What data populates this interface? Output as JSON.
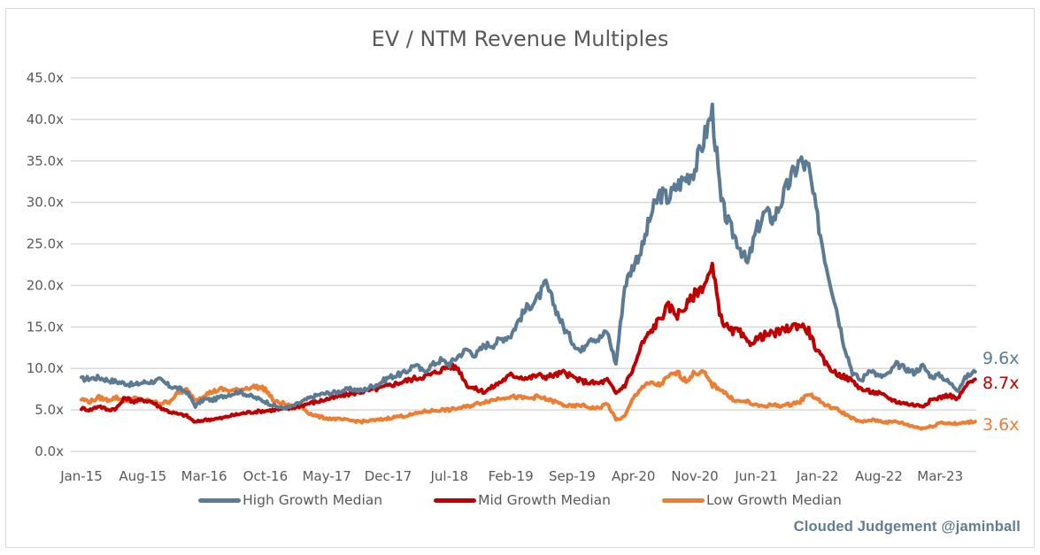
{
  "chart_data": {
    "type": "line",
    "title": "EV / NTM Revenue Multiples",
    "xlabel": "",
    "ylabel": "",
    "ylim": [
      0,
      45
    ],
    "y_ticks": [
      "0.0x",
      "5.0x",
      "10.0x",
      "15.0x",
      "20.0x",
      "25.0x",
      "30.0x",
      "35.0x",
      "40.0x",
      "45.0x"
    ],
    "y_tick_values": [
      0,
      5,
      10,
      15,
      20,
      25,
      30,
      35,
      40,
      45
    ],
    "x_ticks": [
      "Jan-15",
      "Aug-15",
      "Mar-16",
      "Oct-16",
      "May-17",
      "Dec-17",
      "Jul-18",
      "Feb-19",
      "Sep-19",
      "Apr-20",
      "Nov-20",
      "Jun-21",
      "Jan-22",
      "Aug-22",
      "Mar-23"
    ],
    "x_tick_month_index": [
      0,
      7,
      14,
      21,
      28,
      35,
      42,
      49,
      56,
      63,
      70,
      77,
      84,
      91,
      98
    ],
    "x_start": "Jan-15",
    "x_step": "1 month",
    "grid": true,
    "legend_position": "bottom",
    "series": [
      {
        "name": "High Growth Median",
        "color": "#5b7b95",
        "end_label": "9.6x",
        "values": [
          8.7,
          8.8,
          8.9,
          8.6,
          8.4,
          8.2,
          8.0,
          8.3,
          8.4,
          8.6,
          7.9,
          7.6,
          7.2,
          5.5,
          6.3,
          6.2,
          6.6,
          6.9,
          7.2,
          6.8,
          6.4,
          6.0,
          5.5,
          5.2,
          5.4,
          5.9,
          6.4,
          6.8,
          7.0,
          7.1,
          7.4,
          7.5,
          7.3,
          7.8,
          8.2,
          8.9,
          9.2,
          9.5,
          10.5,
          9.6,
          10.4,
          11.0,
          10.5,
          11.5,
          12.3,
          11.6,
          12.8,
          12.9,
          13.6,
          14.0,
          16.0,
          17.5,
          18.3,
          20.2,
          17.5,
          15.0,
          13.3,
          12.0,
          13.8,
          13.5,
          14.5,
          10.5,
          20.0,
          22.5,
          24.5,
          28.5,
          31.0,
          30.5,
          32.0,
          33.0,
          34.0,
          37.5,
          41.0,
          30.0,
          27.0,
          25.0,
          22.5,
          26.5,
          28.8,
          28.0,
          30.5,
          33.0,
          35.0,
          34.0,
          28.0,
          22.5,
          18.0,
          13.0,
          9.5,
          8.5,
          10.0,
          9.0,
          9.2,
          10.5,
          10.0,
          9.5,
          10.3,
          9.0,
          9.2,
          8.3,
          7.5,
          9.0,
          9.6
        ]
      },
      {
        "name": "Mid Growth Median",
        "color": "#c00000",
        "end_label": "8.7x",
        "values": [
          5.2,
          5.0,
          5.5,
          5.0,
          5.2,
          6.5,
          6.0,
          6.2,
          6.0,
          5.3,
          4.8,
          4.5,
          4.3,
          3.5,
          3.8,
          3.9,
          4.0,
          4.3,
          4.5,
          4.7,
          4.8,
          4.9,
          5.0,
          5.1,
          5.2,
          5.5,
          5.8,
          6.0,
          6.3,
          6.5,
          6.8,
          7.0,
          7.2,
          7.4,
          7.6,
          7.9,
          8.2,
          8.5,
          8.8,
          9.0,
          9.3,
          9.8,
          10.3,
          10.0,
          8.0,
          7.5,
          7.2,
          7.8,
          8.5,
          9.2,
          9.0,
          8.8,
          9.2,
          9.0,
          9.2,
          9.5,
          9.0,
          8.5,
          8.3,
          8.2,
          8.6,
          7.0,
          8.0,
          10.0,
          13.0,
          14.5,
          16.0,
          17.5,
          16.5,
          17.5,
          19.0,
          20.0,
          22.0,
          16.0,
          14.5,
          14.5,
          13.0,
          13.5,
          14.0,
          14.2,
          14.5,
          15.0,
          15.3,
          14.5,
          12.0,
          10.5,
          9.5,
          9.0,
          8.5,
          7.5,
          7.2,
          7.0,
          6.5,
          6.0,
          5.8,
          5.6,
          5.5,
          6.2,
          6.5,
          6.8,
          6.3,
          8.0,
          8.7
        ]
      },
      {
        "name": "Low Growth Median",
        "color": "#ed7d31",
        "end_label": "3.6x",
        "values": [
          6.3,
          6.0,
          6.5,
          6.2,
          6.5,
          6.0,
          6.4,
          6.2,
          6.0,
          5.8,
          6.0,
          7.0,
          7.4,
          6.2,
          6.8,
          7.2,
          7.5,
          7.3,
          7.4,
          7.7,
          7.8,
          7.5,
          6.0,
          5.8,
          5.4,
          5.5,
          4.6,
          4.2,
          4.0,
          3.9,
          3.8,
          3.7,
          3.6,
          3.7,
          3.8,
          4.0,
          4.2,
          4.3,
          4.5,
          4.8,
          4.9,
          5.0,
          5.0,
          5.2,
          5.4,
          5.7,
          6.0,
          6.2,
          6.5,
          6.6,
          6.5,
          6.4,
          6.6,
          6.3,
          6.0,
          5.6,
          5.4,
          5.6,
          5.3,
          5.2,
          5.8,
          3.8,
          4.2,
          6.5,
          7.8,
          8.2,
          8.0,
          9.0,
          9.5,
          8.5,
          9.5,
          9.5,
          8.0,
          7.5,
          6.5,
          6.0,
          6.0,
          5.5,
          5.5,
          5.6,
          5.5,
          5.7,
          6.0,
          7.0,
          6.3,
          5.5,
          5.2,
          4.6,
          4.0,
          3.5,
          3.8,
          3.7,
          3.5,
          3.6,
          3.3,
          3.0,
          2.8,
          3.0,
          3.5,
          3.4,
          3.3,
          3.5,
          3.6
        ]
      }
    ]
  },
  "credit": "Clouded Judgement @jaminball"
}
